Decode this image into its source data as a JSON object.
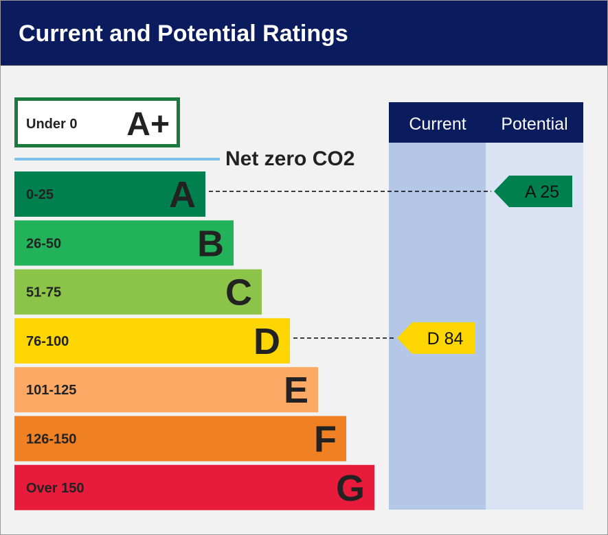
{
  "header": {
    "title": "Current and Potential Ratings"
  },
  "chart_data": {
    "type": "bar",
    "title": "Current and Potential Ratings",
    "top_band": {
      "range": "Under 0",
      "letter": "A+"
    },
    "net_zero_label": "Net zero CO2",
    "bands": [
      {
        "range": "0-25",
        "letter": "A",
        "color": "#007f4f"
      },
      {
        "range": "26-50",
        "letter": "B",
        "color": "#22b35a"
      },
      {
        "range": "51-75",
        "letter": "C",
        "color": "#8cc44a"
      },
      {
        "range": "76-100",
        "letter": "D",
        "color": "#fdd500"
      },
      {
        "range": "101-125",
        "letter": "E",
        "color": "#fba964"
      },
      {
        "range": "126-150",
        "letter": "F",
        "color": "#ef8023"
      },
      {
        "range": "Over 150",
        "letter": "G",
        "color": "#e91b3c"
      }
    ],
    "columns": {
      "current": "Current",
      "potential": "Potential"
    },
    "current": {
      "letter": "D",
      "value": 84,
      "label": "D 84",
      "color": "#fdd500"
    },
    "potential": {
      "letter": "A",
      "value": 25,
      "label": "A 25",
      "color": "#007f4f"
    }
  }
}
